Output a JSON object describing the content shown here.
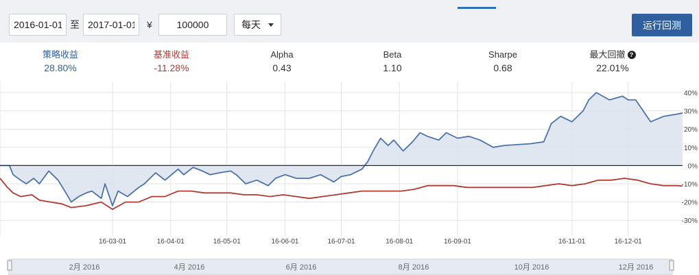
{
  "toolbar": {
    "start_date": "2016-01-01",
    "to_label": "至",
    "end_date": "2017-01-01",
    "currency_symbol": "¥",
    "capital": "100000",
    "frequency": "每天",
    "run_label": "运行回测"
  },
  "stats": [
    {
      "name": "策略收益",
      "value": "28.80%",
      "color": "#2f5f9e"
    },
    {
      "name": "基准收益",
      "value": "-11.28%",
      "color": "#b03a32"
    },
    {
      "name": "Alpha",
      "value": "0.43"
    },
    {
      "name": "Beta",
      "value": "1.10"
    },
    {
      "name": "Sharpe",
      "value": "0.68"
    },
    {
      "name": "最大回撤",
      "value": "22.01%",
      "help": "?"
    }
  ],
  "chart_data": {
    "type": "line",
    "x_ticks": [
      "16-03-01",
      "16-04-01",
      "16-05-01",
      "16-06-01",
      "16-07-01",
      "16-08-01",
      "16-09-01",
      "16-11-01",
      "16-12-01"
    ],
    "y_ticks": [
      "40%",
      "30%",
      "20%",
      "10%",
      "0%",
      "-10%",
      "-20%",
      "-30%"
    ],
    "ylim": [
      -30,
      45
    ],
    "xlim": [
      "2016-01-01",
      "2016-12-30"
    ],
    "series": [
      {
        "name": "策略收益",
        "color": "#4a72a8",
        "fill": "#dbe3ee",
        "points": [
          [
            "2016-01-01",
            0
          ],
          [
            "2016-01-06",
            0
          ],
          [
            "2016-01-08",
            -5
          ],
          [
            "2016-01-12",
            -8
          ],
          [
            "2016-01-15",
            -10
          ],
          [
            "2016-01-19",
            -7
          ],
          [
            "2016-01-22",
            -10
          ],
          [
            "2016-01-27",
            -3
          ],
          [
            "2016-02-01",
            -8
          ],
          [
            "2016-02-04",
            -13
          ],
          [
            "2016-02-08",
            -20
          ],
          [
            "2016-02-12",
            -17
          ],
          [
            "2016-02-16",
            -15
          ],
          [
            "2016-02-19",
            -14
          ],
          [
            "2016-02-24",
            -18
          ],
          [
            "2016-02-26",
            -10
          ],
          [
            "2016-03-01",
            -22
          ],
          [
            "2016-03-04",
            -14
          ],
          [
            "2016-03-09",
            -17
          ],
          [
            "2016-03-15",
            -12
          ],
          [
            "2016-03-18",
            -10
          ],
          [
            "2016-03-24",
            -4
          ],
          [
            "2016-03-29",
            -8
          ],
          [
            "2016-04-05",
            -2
          ],
          [
            "2016-04-08",
            -5
          ],
          [
            "2016-04-13",
            -1
          ],
          [
            "2016-04-18",
            -3
          ],
          [
            "2016-04-22",
            -5
          ],
          [
            "2016-04-27",
            -4
          ],
          [
            "2016-05-03",
            -3
          ],
          [
            "2016-05-06",
            -5
          ],
          [
            "2016-05-11",
            -10
          ],
          [
            "2016-05-17",
            -8
          ],
          [
            "2016-05-23",
            -11
          ],
          [
            "2016-05-27",
            -7
          ],
          [
            "2016-06-01",
            -5
          ],
          [
            "2016-06-07",
            -7
          ],
          [
            "2016-06-14",
            -7
          ],
          [
            "2016-06-20",
            -5
          ],
          [
            "2016-06-27",
            -9
          ],
          [
            "2016-07-01",
            -6
          ],
          [
            "2016-07-06",
            -5
          ],
          [
            "2016-07-12",
            -2
          ],
          [
            "2016-07-15",
            2
          ],
          [
            "2016-07-18",
            8
          ],
          [
            "2016-07-22",
            15
          ],
          [
            "2016-07-26",
            11
          ],
          [
            "2016-07-29",
            14
          ],
          [
            "2016-08-03",
            8
          ],
          [
            "2016-08-08",
            13
          ],
          [
            "2016-08-12",
            18
          ],
          [
            "2016-08-16",
            16
          ],
          [
            "2016-08-22",
            14
          ],
          [
            "2016-08-26",
            18
          ],
          [
            "2016-09-01",
            15
          ],
          [
            "2016-09-07",
            16
          ],
          [
            "2016-09-13",
            14
          ],
          [
            "2016-09-20",
            10
          ],
          [
            "2016-09-26",
            11
          ],
          [
            "2016-10-10",
            12
          ],
          [
            "2016-10-17",
            13
          ],
          [
            "2016-10-21",
            23
          ],
          [
            "2016-10-26",
            27
          ],
          [
            "2016-11-01",
            24
          ],
          [
            "2016-11-07",
            30
          ],
          [
            "2016-11-10",
            36
          ],
          [
            "2016-11-14",
            40
          ],
          [
            "2016-11-21",
            36
          ],
          [
            "2016-11-28",
            38
          ],
          [
            "2016-12-01",
            36
          ],
          [
            "2016-12-05",
            36
          ],
          [
            "2016-12-09",
            30
          ],
          [
            "2016-12-13",
            24
          ],
          [
            "2016-12-20",
            27
          ],
          [
            "2016-12-26",
            28
          ],
          [
            "2016-12-30",
            28.8
          ]
        ]
      },
      {
        "name": "基准收益",
        "color": "#b03a32",
        "points": [
          [
            "2016-01-01",
            -7
          ],
          [
            "2016-01-05",
            -12
          ],
          [
            "2016-01-08",
            -15
          ],
          [
            "2016-01-12",
            -17
          ],
          [
            "2016-01-18",
            -16
          ],
          [
            "2016-01-22",
            -19
          ],
          [
            "2016-01-28",
            -20
          ],
          [
            "2016-02-03",
            -21
          ],
          [
            "2016-02-08",
            -23
          ],
          [
            "2016-02-16",
            -22
          ],
          [
            "2016-02-24",
            -20
          ],
          [
            "2016-03-01",
            -24
          ],
          [
            "2016-03-08",
            -20
          ],
          [
            "2016-03-15",
            -20
          ],
          [
            "2016-03-22",
            -17
          ],
          [
            "2016-03-29",
            -17
          ],
          [
            "2016-04-05",
            -14
          ],
          [
            "2016-04-12",
            -14
          ],
          [
            "2016-04-19",
            -15
          ],
          [
            "2016-04-26",
            -15
          ],
          [
            "2016-05-03",
            -15
          ],
          [
            "2016-05-10",
            -16
          ],
          [
            "2016-05-17",
            -16
          ],
          [
            "2016-05-24",
            -17
          ],
          [
            "2016-05-31",
            -16
          ],
          [
            "2016-06-07",
            -17
          ],
          [
            "2016-06-14",
            -18
          ],
          [
            "2016-06-21",
            -17
          ],
          [
            "2016-06-28",
            -16
          ],
          [
            "2016-07-05",
            -15
          ],
          [
            "2016-07-12",
            -14
          ],
          [
            "2016-07-19",
            -14
          ],
          [
            "2016-07-26",
            -14
          ],
          [
            "2016-08-02",
            -14
          ],
          [
            "2016-08-09",
            -13
          ],
          [
            "2016-08-16",
            -11
          ],
          [
            "2016-08-23",
            -11
          ],
          [
            "2016-08-30",
            -11
          ],
          [
            "2016-09-06",
            -12
          ],
          [
            "2016-09-13",
            -12
          ],
          [
            "2016-09-20",
            -12
          ],
          [
            "2016-09-27",
            -12
          ],
          [
            "2016-10-11",
            -12
          ],
          [
            "2016-10-18",
            -11
          ],
          [
            "2016-10-25",
            -10
          ],
          [
            "2016-11-01",
            -11
          ],
          [
            "2016-11-08",
            -10
          ],
          [
            "2016-11-15",
            -8
          ],
          [
            "2016-11-22",
            -8
          ],
          [
            "2016-11-29",
            -7
          ],
          [
            "2016-12-06",
            -8
          ],
          [
            "2016-12-13",
            -10
          ],
          [
            "2016-12-20",
            -11
          ],
          [
            "2016-12-27",
            -11
          ],
          [
            "2016-12-30",
            -11.28
          ]
        ]
      }
    ],
    "navigator_labels": [
      "2月 2016",
      "4月 2016",
      "6月 2016",
      "8月 2016",
      "10月 2016",
      "12月 2016"
    ]
  }
}
